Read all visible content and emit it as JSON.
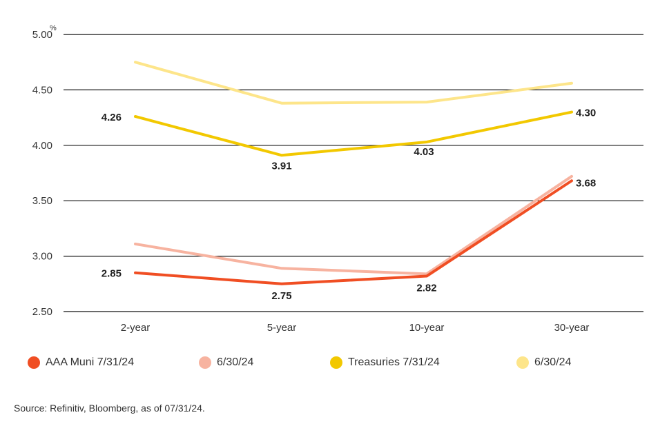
{
  "chart_data": {
    "type": "line",
    "categories": [
      "2-year",
      "5-year",
      "10-year",
      "30-year"
    ],
    "y_unit": "%",
    "yticks": [
      "5.00",
      "4.50",
      "4.00",
      "3.50",
      "3.00",
      "2.50"
    ],
    "ylim": [
      2.5,
      5.0
    ],
    "grid": true,
    "legend_position": "bottom",
    "series": [
      {
        "name": "AAA Muni 7/31/24",
        "values": [
          2.85,
          2.75,
          2.82,
          3.68
        ],
        "labels": [
          "2.85",
          "2.75",
          "2.82",
          "3.68"
        ],
        "color": "#f04e23"
      },
      {
        "name": "6/30/24",
        "values": [
          3.11,
          2.89,
          2.84,
          3.72
        ],
        "color": "#f7b3a0"
      },
      {
        "name": "Treasuries 7/31/24",
        "values": [
          4.26,
          3.91,
          4.03,
          4.3
        ],
        "labels": [
          "4.26",
          "3.91",
          "4.03",
          "4.30"
        ],
        "color": "#f2c800"
      },
      {
        "name": "6/30/24",
        "values": [
          4.75,
          4.38,
          4.39,
          4.56
        ],
        "color": "#fde58a"
      }
    ]
  },
  "source_text": "Source: Refinitiv, Bloomberg, as of 07/31/24."
}
